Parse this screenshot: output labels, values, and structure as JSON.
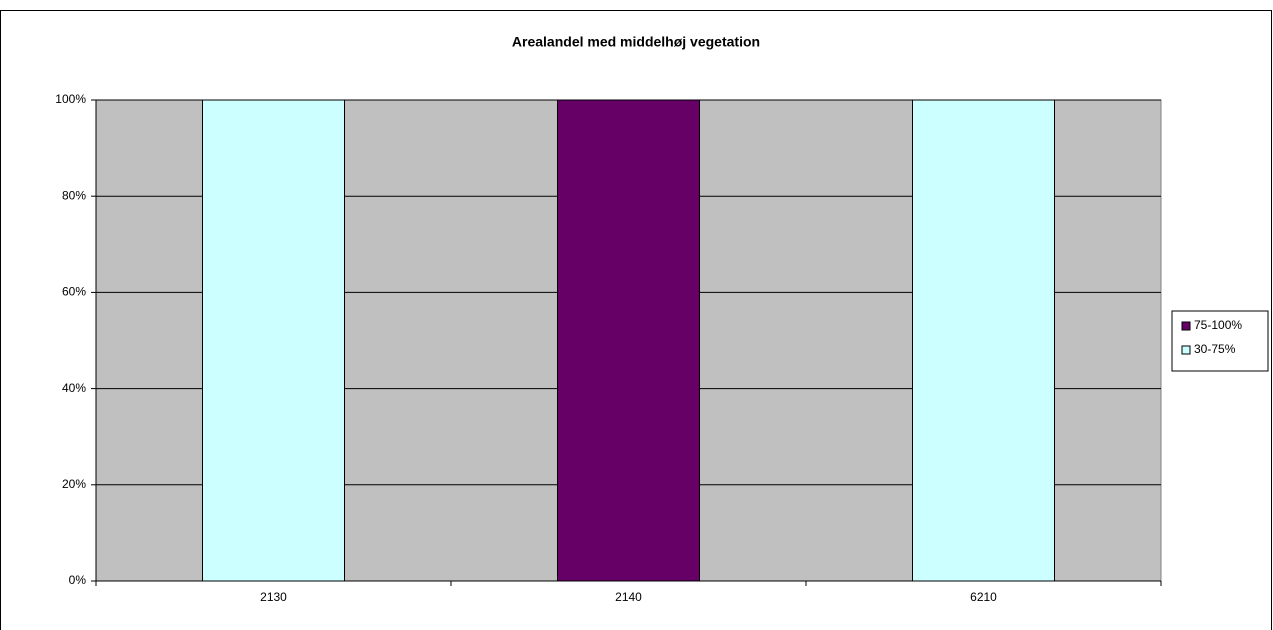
{
  "chart_data": {
    "type": "stacked_bar",
    "title": "Arealandel med middelhøj vegetation",
    "categories": [
      "2130",
      "2140",
      "6210"
    ],
    "series": [
      {
        "name": "75-100%",
        "color": "#660066",
        "values": [
          0,
          100,
          0
        ]
      },
      {
        "name": "30-75%",
        "color": "#ccffff",
        "values": [
          100,
          0,
          100
        ]
      }
    ],
    "ylim": [
      0,
      100
    ],
    "yticks": [
      {
        "value": 0,
        "label": "0%"
      },
      {
        "value": 20,
        "label": "20%"
      },
      {
        "value": 40,
        "label": "40%"
      },
      {
        "value": 60,
        "label": "60%"
      },
      {
        "value": 80,
        "label": "80%"
      },
      {
        "value": 100,
        "label": "100%"
      }
    ],
    "grid": true,
    "plot_background": "#c0c0c0",
    "legend": "right"
  }
}
